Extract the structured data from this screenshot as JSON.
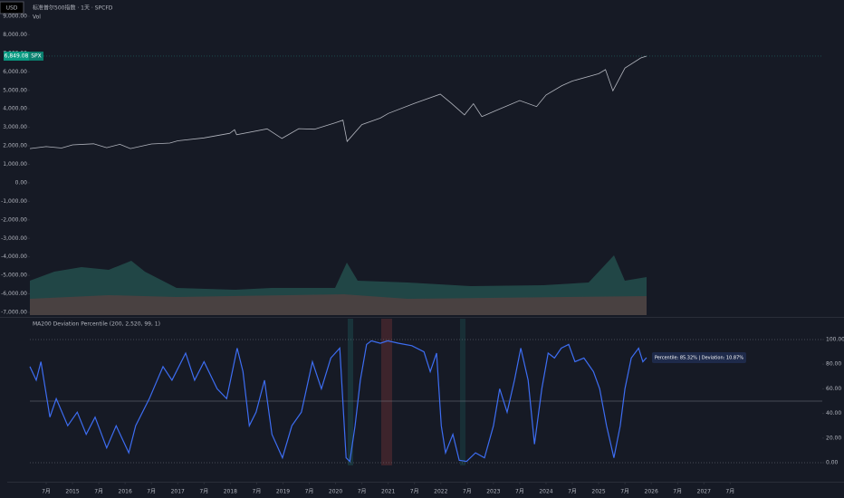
{
  "header": {
    "currency": "USD"
  },
  "chart_data": [
    {
      "type": "line",
      "title": "标准普尔500指数 · 1天 · SPCFD",
      "subtitle": "Vol",
      "symbol": "SPX",
      "color": "#b2b5be",
      "last_value": {
        "value": 6849.08,
        "label": "6,849.08"
      },
      "x": [
        2014.19,
        2014.5,
        2014.79,
        2015,
        2015.4,
        2015.65,
        2015.9,
        2016.1,
        2016.5,
        2016.85,
        2017,
        2017.5,
        2017.99,
        2018.08,
        2018.12,
        2018.7,
        2018.98,
        2019.3,
        2019.6,
        2020.0,
        2020.14,
        2020.22,
        2020.5,
        2020.85,
        2021.0,
        2021.5,
        2021.99,
        2022.2,
        2022.45,
        2022.62,
        2022.78,
        2023.0,
        2023.5,
        2023.82,
        2024.0,
        2024.3,
        2024.5,
        2025.0,
        2025.13,
        2025.27,
        2025.5,
        2025.8,
        2025.91
      ],
      "values": [
        1850,
        1960,
        1880,
        2050,
        2110,
        1900,
        2080,
        1850,
        2100,
        2150,
        2270,
        2430,
        2680,
        2870,
        2600,
        2920,
        2400,
        2930,
        2900,
        3250,
        3390,
        2240,
        3150,
        3500,
        3750,
        4300,
        4790,
        4300,
        3670,
        4280,
        3580,
        3850,
        4450,
        4120,
        4750,
        5250,
        5500,
        5900,
        6120,
        4980,
        6200,
        6750,
        6849.08
      ],
      "xlim": [
        2014.19,
        2029.25
      ],
      "ylim": [
        -7000,
        9000
      ],
      "yticks": [
        {
          "value": 9000,
          "label": "9,000.00"
        },
        {
          "value": 8000,
          "label": "8,000.00"
        },
        {
          "value": 7000,
          "label": "7,000.00"
        },
        {
          "value": 6000,
          "label": "6,000.00"
        },
        {
          "value": 5000,
          "label": "5,000.00"
        },
        {
          "value": 4000,
          "label": "4,000.00"
        },
        {
          "value": 3000,
          "label": "3,000.00"
        },
        {
          "value": 2000,
          "label": "2,000.00"
        },
        {
          "value": 1000,
          "label": "1,000.00"
        },
        {
          "value": 0,
          "label": "0.00"
        },
        {
          "value": -1000,
          "label": "-1,000.00"
        },
        {
          "value": -2000,
          "label": "-2,000.00"
        },
        {
          "value": -3000,
          "label": "-3,000.00"
        },
        {
          "value": -4000,
          "label": "-4,000.00"
        },
        {
          "value": -5000,
          "label": "-5,000.00"
        },
        {
          "value": -6000,
          "label": "-6,000.00"
        },
        {
          "value": -7000,
          "label": "-7,000.00"
        }
      ]
    },
    {
      "type": "line",
      "title": "MA200 Deviation Percentile (200, 2,520, 99, 1)",
      "annotation": "Percentile: 85.32% | Deviation: 10.87%",
      "color": "#3d6df2",
      "x": [
        2014.19,
        2014.31,
        2014.4,
        2014.57,
        2014.69,
        2014.91,
        2015.09,
        2015.26,
        2015.43,
        2015.65,
        2015.83,
        2016.07,
        2016.2,
        2016.46,
        2016.72,
        2016.89,
        2017.15,
        2017.32,
        2017.5,
        2017.75,
        2017.93,
        2018.13,
        2018.24,
        2018.36,
        2018.49,
        2018.65,
        2018.79,
        2018.99,
        2019.17,
        2019.35,
        2019.56,
        2019.73,
        2019.91,
        2020.08,
        2020.2,
        2020.27,
        2020.37,
        2020.47,
        2020.59,
        2020.68,
        2020.85,
        2020.99,
        2021.2,
        2021.45,
        2021.68,
        2021.8,
        2021.92,
        2022.01,
        2022.09,
        2022.23,
        2022.35,
        2022.49,
        2022.66,
        2022.83,
        2023.0,
        2023.12,
        2023.26,
        2023.4,
        2023.52,
        2023.66,
        2023.78,
        2023.92,
        2024.04,
        2024.16,
        2024.29,
        2024.43,
        2024.55,
        2024.72,
        2024.9,
        2025.02,
        2025.15,
        2025.29,
        2025.41,
        2025.5,
        2025.62,
        2025.76,
        2025.84,
        2025.91
      ],
      "values": [
        78,
        67,
        82,
        37,
        52,
        30,
        41,
        23,
        37,
        12,
        30,
        8,
        30,
        52,
        78,
        67,
        89,
        67,
        82,
        60,
        52,
        93,
        74,
        30,
        41,
        67,
        23,
        4,
        30,
        41,
        82,
        60,
        85,
        93,
        4,
        1,
        30,
        67,
        96,
        99,
        97,
        99,
        97,
        95,
        90,
        74,
        89,
        30,
        8,
        23,
        2,
        1,
        8,
        4,
        30,
        60,
        41,
        67,
        93,
        67,
        15,
        60,
        89,
        85,
        93,
        96,
        82,
        85,
        74,
        60,
        30,
        4,
        30,
        60,
        85,
        93,
        82,
        85.32
      ],
      "hlines": [
        100,
        50,
        0
      ],
      "xlim": [
        2014.19,
        2029.25
      ],
      "ylim": [
        0,
        100
      ],
      "yticks": [
        {
          "value": 100,
          "label": "100.00"
        },
        {
          "value": 80,
          "label": "80.00"
        },
        {
          "value": 60,
          "label": "60.00"
        },
        {
          "value": 40,
          "label": "40.00"
        },
        {
          "value": 20,
          "label": "20.00"
        },
        {
          "value": 0,
          "label": "0.00"
        }
      ],
      "xticks": [
        {
          "value": 2014.5,
          "label": "7月"
        },
        2015,
        {
          "value": 2015.5,
          "label": "7月"
        },
        2016,
        {
          "value": 2016.5,
          "label": "7月"
        },
        2017,
        {
          "value": 2017.5,
          "label": "7月"
        },
        2018,
        {
          "value": 2018.5,
          "label": "7月"
        },
        2019,
        {
          "value": 2019.5,
          "label": "7月"
        },
        2020,
        {
          "value": 2020.5,
          "label": "7月"
        },
        2021,
        {
          "value": 2021.5,
          "label": "7月"
        },
        2022,
        {
          "value": 2022.5,
          "label": "7月"
        },
        2023,
        {
          "value": 2023.5,
          "label": "7月"
        },
        2024,
        {
          "value": 2024.5,
          "label": "7月"
        },
        2025,
        {
          "value": 2025.5,
          "label": "7月"
        },
        2026,
        {
          "value": 2026.5,
          "label": "7月"
        },
        2027,
        {
          "value": 2027.5,
          "label": "7月"
        }
      ]
    }
  ]
}
